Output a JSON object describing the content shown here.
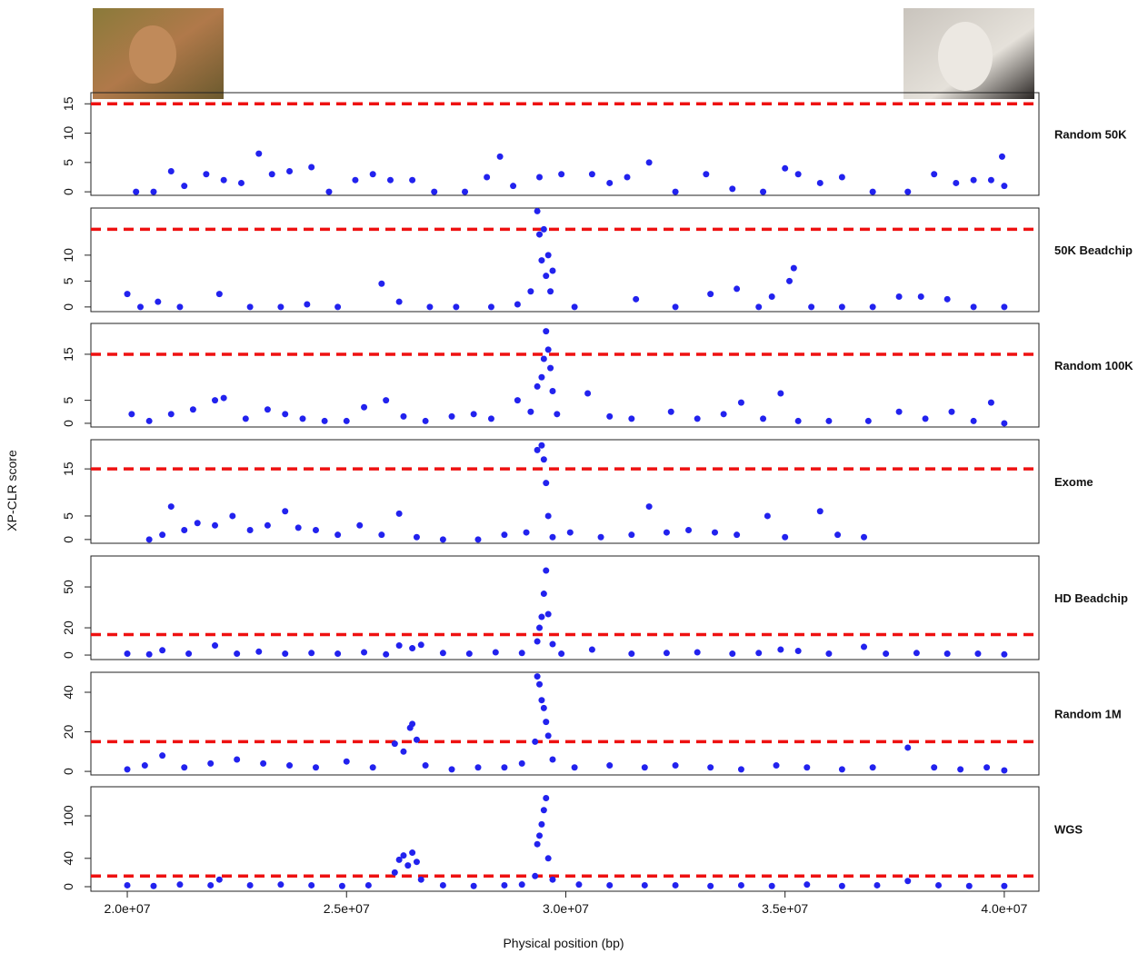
{
  "figure": {
    "xlabel": "Physical position (bp)",
    "ylabel": "XP-CLR score"
  },
  "chart_data": [
    {
      "type": "scatter",
      "title": "Random 50K",
      "color": "#2222ee",
      "threshold": 15,
      "threshold_color": "#ee1111",
      "xlim": [
        19170000,
        40790000
      ],
      "ylim": [
        -0.6,
        16.9
      ],
      "yticks": [
        0,
        5,
        10,
        15
      ],
      "x": [
        20200000,
        20600000,
        21000000,
        21300000,
        21800000,
        22200000,
        22600000,
        23000000,
        23300000,
        23700000,
        24200000,
        24600000,
        25200000,
        25600000,
        26000000,
        26500000,
        27000000,
        27700000,
        28200000,
        28500000,
        28800000,
        29400000,
        29900000,
        30600000,
        31000000,
        31400000,
        31900000,
        32500000,
        33200000,
        33800000,
        34500000,
        35000000,
        35300000,
        35800000,
        36300000,
        37000000,
        37800000,
        38400000,
        38900000,
        39300000,
        39700000,
        39950000,
        40000000
      ],
      "values": [
        0,
        0,
        3.5,
        1,
        3,
        2,
        1.5,
        6.5,
        3,
        3.5,
        4.2,
        0,
        2,
        3,
        2,
        2,
        0,
        0,
        2.5,
        6,
        1,
        2.5,
        3,
        3,
        1.5,
        2.5,
        5,
        0,
        3,
        0.5,
        0,
        4,
        3,
        1.5,
        2.5,
        0,
        0,
        3,
        1.5,
        2,
        2,
        6,
        1
      ]
    },
    {
      "type": "scatter",
      "title": "50K Beadchip",
      "color": "#2222ee",
      "threshold": 15,
      "threshold_color": "#ee1111",
      "xlim": [
        19170000,
        40790000
      ],
      "ylim": [
        -0.9,
        19.1
      ],
      "yticks": [
        0,
        5,
        10
      ],
      "x": [
        20000000,
        20300000,
        20700000,
        21200000,
        22100000,
        22800000,
        23500000,
        24100000,
        24800000,
        25800000,
        26200000,
        26900000,
        27500000,
        28300000,
        28900000,
        29200000,
        29350000,
        29400000,
        29450000,
        29500000,
        29550000,
        29600000,
        29650000,
        29700000,
        30200000,
        31600000,
        32500000,
        33300000,
        33900000,
        34400000,
        34700000,
        35100000,
        35200000,
        35600000,
        36300000,
        37000000,
        37600000,
        38100000,
        38700000,
        39300000,
        40000000
      ],
      "values": [
        2.5,
        0,
        1,
        0,
        2.5,
        0,
        0,
        0.5,
        0,
        4.5,
        1,
        0,
        0,
        0,
        0.5,
        3,
        18.5,
        14,
        9,
        15,
        6,
        10,
        3,
        7,
        0,
        1.5,
        0,
        2.5,
        3.5,
        0,
        2,
        5,
        7.5,
        0,
        0,
        0,
        2,
        2,
        1.5,
        0,
        0
      ]
    },
    {
      "type": "scatter",
      "title": "Random 100K",
      "color": "#2222ee",
      "threshold": 15,
      "threshold_color": "#ee1111",
      "xlim": [
        19170000,
        40790000
      ],
      "ylim": [
        -0.8,
        21.7
      ],
      "yticks": [
        0,
        5,
        15
      ],
      "x": [
        20100000,
        20500000,
        21000000,
        21500000,
        22000000,
        22200000,
        22700000,
        23200000,
        23600000,
        24000000,
        24500000,
        25000000,
        25400000,
        25900000,
        26300000,
        26800000,
        27400000,
        27900000,
        28300000,
        28900000,
        29200000,
        29350000,
        29450000,
        29500000,
        29550000,
        29600000,
        29650000,
        29700000,
        29800000,
        30500000,
        31000000,
        31500000,
        32400000,
        33000000,
        33600000,
        34000000,
        34500000,
        34900000,
        35300000,
        36000000,
        36900000,
        37600000,
        38200000,
        38800000,
        39300000,
        39700000,
        40000000
      ],
      "values": [
        2,
        0.5,
        2,
        3,
        5,
        5.5,
        1,
        3,
        2,
        1,
        0.5,
        0.5,
        3.5,
        5,
        1.5,
        0.5,
        1.5,
        2,
        1,
        5,
        2.5,
        8,
        10,
        14,
        20,
        16,
        12,
        7,
        2,
        6.5,
        1.5,
        1,
        2.5,
        1,
        2,
        4.5,
        1,
        6.5,
        0.5,
        0.5,
        0.5,
        2.5,
        1,
        2.5,
        0.5,
        4.5,
        0
      ]
    },
    {
      "type": "scatter",
      "title": "Exome",
      "color": "#2222ee",
      "threshold": 15,
      "threshold_color": "#ee1111",
      "xlim": [
        19170000,
        40790000
      ],
      "ylim": [
        -0.8,
        21.2
      ],
      "yticks": [
        0,
        5,
        15
      ],
      "x": [
        20500000,
        20800000,
        21000000,
        21300000,
        21600000,
        22000000,
        22400000,
        22800000,
        23200000,
        23600000,
        23900000,
        24300000,
        24800000,
        25300000,
        25800000,
        26200000,
        26600000,
        27200000,
        28000000,
        28600000,
        29100000,
        29350000,
        29450000,
        29500000,
        29550000,
        29600000,
        29700000,
        30100000,
        30800000,
        31500000,
        31900000,
        32300000,
        32800000,
        33400000,
        33900000,
        34600000,
        35000000,
        35800000,
        36200000,
        36800000
      ],
      "values": [
        0,
        1,
        7,
        2,
        3.5,
        3,
        5,
        2,
        3,
        6,
        2.5,
        2,
        1,
        3,
        1,
        5.5,
        0.5,
        0,
        0,
        1,
        1.5,
        19,
        20,
        17,
        12,
        5,
        0.5,
        1.5,
        0.5,
        1,
        7,
        1.5,
        2,
        1.5,
        1,
        5,
        0.5,
        6,
        1,
        0.5
      ]
    },
    {
      "type": "scatter",
      "title": "HD Beadchip",
      "color": "#2222ee",
      "threshold": 15,
      "threshold_color": "#ee1111",
      "xlim": [
        19170000,
        40790000
      ],
      "ylim": [
        -3.3,
        72.7
      ],
      "yticks": [
        0,
        20,
        50
      ],
      "x": [
        20000000,
        20500000,
        20800000,
        21400000,
        22000000,
        22500000,
        23000000,
        23600000,
        24200000,
        24800000,
        25400000,
        25900000,
        26200000,
        26500000,
        26700000,
        27200000,
        27800000,
        28400000,
        29000000,
        29350000,
        29400000,
        29450000,
        29500000,
        29550000,
        29600000,
        29700000,
        29900000,
        30600000,
        31500000,
        32300000,
        33000000,
        33800000,
        34400000,
        34900000,
        35300000,
        36000000,
        36800000,
        37300000,
        38000000,
        38700000,
        39400000,
        40000000
      ],
      "values": [
        1,
        0.5,
        3.5,
        1,
        7,
        1,
        2.5,
        1,
        1.5,
        1,
        2,
        0.5,
        7,
        5,
        7.5,
        1.5,
        1,
        2,
        1.5,
        10,
        20,
        28,
        45,
        62,
        30,
        8,
        1,
        4,
        1,
        1.5,
        2,
        1,
        1.5,
        4,
        3,
        1,
        6,
        1,
        1.5,
        1,
        1,
        0.5
      ]
    },
    {
      "type": "scatter",
      "title": "Random 1M",
      "color": "#2222ee",
      "threshold": 15,
      "threshold_color": "#ee1111",
      "xlim": [
        19170000,
        40790000
      ],
      "ylim": [
        -1.8,
        50.1
      ],
      "yticks": [
        0,
        20,
        40
      ],
      "x": [
        20000000,
        20400000,
        20800000,
        21300000,
        21900000,
        22500000,
        23100000,
        23700000,
        24300000,
        25000000,
        25600000,
        26100000,
        26300000,
        26450000,
        26500000,
        26600000,
        26800000,
        27400000,
        28000000,
        28600000,
        29000000,
        29300000,
        29350000,
        29400000,
        29450000,
        29500000,
        29550000,
        29600000,
        29700000,
        30200000,
        31000000,
        31800000,
        32500000,
        33300000,
        34000000,
        34800000,
        35500000,
        36300000,
        37000000,
        37800000,
        38400000,
        39000000,
        39600000,
        40000000
      ],
      "values": [
        1,
        3,
        8,
        2,
        4,
        6,
        4,
        3,
        2,
        5,
        2,
        14,
        10,
        22,
        24,
        16,
        3,
        1,
        2,
        2,
        4,
        15,
        48,
        44,
        36,
        32,
        25,
        18,
        6,
        2,
        3,
        2,
        3,
        2,
        1,
        3,
        2,
        1,
        2,
        12,
        2,
        1,
        2,
        0.5
      ]
    },
    {
      "type": "scatter",
      "title": "WGS",
      "color": "#2222ee",
      "threshold": 15,
      "threshold_color": "#ee1111",
      "xlim": [
        19170000,
        40790000
      ],
      "ylim": [
        -6.4,
        141
      ],
      "yticks": [
        0,
        40,
        100
      ],
      "xticks": [
        {
          "value": 20000000,
          "label": "2.0e+07"
        },
        {
          "value": 25000000,
          "label": "2.5e+07"
        },
        {
          "value": 30000000,
          "label": "3.0e+07"
        },
        {
          "value": 35000000,
          "label": "3.5e+07"
        },
        {
          "value": 40000000,
          "label": "4.0e+07"
        }
      ],
      "x": [
        20000000,
        20600000,
        21200000,
        21900000,
        22100000,
        22800000,
        23500000,
        24200000,
        24900000,
        25500000,
        26100000,
        26200000,
        26300000,
        26400000,
        26500000,
        26600000,
        26700000,
        27200000,
        27900000,
        28600000,
        29000000,
        29300000,
        29350000,
        29400000,
        29450000,
        29500000,
        29550000,
        29600000,
        29700000,
        30300000,
        31000000,
        31800000,
        32500000,
        33300000,
        34000000,
        34700000,
        35500000,
        36300000,
        37100000,
        37800000,
        38500000,
        39200000,
        40000000
      ],
      "values": [
        2,
        1,
        3,
        2,
        10,
        2,
        3,
        2,
        1,
        2,
        20,
        38,
        44,
        30,
        48,
        35,
        10,
        2,
        1,
        2,
        3,
        15,
        60,
        72,
        88,
        108,
        125,
        40,
        10,
        3,
        2,
        2,
        2,
        1,
        2,
        1,
        3,
        1,
        2,
        8,
        2,
        1,
        1
      ]
    }
  ]
}
